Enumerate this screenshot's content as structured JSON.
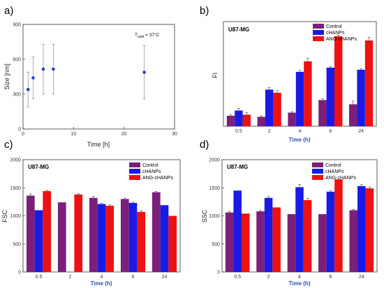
{
  "colors": {
    "control": "#7b1f7a",
    "chanps": "#1a1ae6",
    "ang": "#ee1111",
    "scatter": "#1f3cd6"
  },
  "chart_data": [
    {
      "panel": "a)",
      "type": "scatter",
      "xlabel": "Time [h]",
      "ylabel": "Size [nm]",
      "xlim": [
        0,
        30
      ],
      "ylim": [
        0,
        900
      ],
      "xticks": [
        "0",
        "10",
        "20",
        "30"
      ],
      "yticks": [
        "0",
        "300",
        "600",
        "900"
      ],
      "annotation": {
        "main": "T",
        "sub": "cast",
        "rest": "= 37°C"
      },
      "points": [
        {
          "x": 1,
          "y": 340,
          "err": 150
        },
        {
          "x": 2,
          "y": 440,
          "err": 180
        },
        {
          "x": 4,
          "y": 515,
          "err": 215
        },
        {
          "x": 6,
          "y": 515,
          "err": 215
        },
        {
          "x": 24,
          "y": 488,
          "err": 230
        }
      ]
    },
    {
      "panel": "b)",
      "type": "bar",
      "cell_label": "U87-MG",
      "ylabel": "FI",
      "xlabel": "Time (h)",
      "categories": [
        "0.5",
        "2",
        "4",
        "6",
        "24"
      ],
      "ylim": [
        0,
        100
      ],
      "yticks": [],
      "series": [
        {
          "name": "Control",
          "values": [
            10,
            9,
            13,
            25,
            21
          ],
          "err": [
            1,
            1,
            1,
            1.5,
            3
          ]
        },
        {
          "name": "cHANPs",
          "values": [
            15,
            35,
            52,
            56,
            54
          ],
          "err": [
            2,
            2,
            1.5,
            1,
            1
          ]
        },
        {
          "name": "ANG-cHANPs",
          "values": [
            11,
            32,
            62,
            86,
            82
          ],
          "err": [
            2,
            2,
            3,
            1,
            3
          ]
        }
      ]
    },
    {
      "panel": "c)",
      "type": "bar",
      "cell_label": "U87-MG",
      "ylabel": "FSC",
      "xlabel": "Time (h)",
      "categories": [
        "0.5",
        "2",
        "4",
        "6",
        "24"
      ],
      "ylim": [
        0,
        2000
      ],
      "yticks": [
        "0",
        "500",
        "1000",
        "1500",
        "2000"
      ],
      "series": [
        {
          "name": "Control",
          "values": [
            1360,
            1240,
            1320,
            1300,
            1420
          ],
          "err": [
            30,
            0,
            30,
            15,
            15
          ]
        },
        {
          "name": "cHANPs",
          "values": [
            1100,
            null,
            1210,
            1230,
            1190
          ],
          "err": [
            0,
            0,
            15,
            15,
            0
          ]
        },
        {
          "name": "ANG-cHANPs",
          "values": [
            1440,
            1380,
            1180,
            1070,
            1000
          ],
          "err": [
            15,
            15,
            15,
            25,
            0
          ]
        }
      ]
    },
    {
      "panel": "d)",
      "type": "bar",
      "cell_label": "U87-MG",
      "ylabel": "SSC",
      "xlabel": "Time (h)",
      "categories": [
        "0.5",
        "2",
        "4",
        "6",
        "24"
      ],
      "ylim": [
        0,
        2000
      ],
      "yticks": [
        "0",
        "500",
        "1000",
        "1500",
        "2000"
      ],
      "series": [
        {
          "name": "Control",
          "values": [
            1060,
            1080,
            1030,
            1030,
            1100
          ],
          "err": [
            20,
            15,
            0,
            0,
            15
          ]
        },
        {
          "name": "cHANPs",
          "values": [
            1450,
            1320,
            1510,
            1430,
            1530
          ],
          "err": [
            0,
            25,
            50,
            15,
            30
          ]
        },
        {
          "name": "ANG-cHANPs",
          "values": [
            1040,
            1150,
            1280,
            1650,
            1490
          ],
          "err": [
            0,
            0,
            30,
            0,
            25
          ]
        }
      ]
    }
  ]
}
